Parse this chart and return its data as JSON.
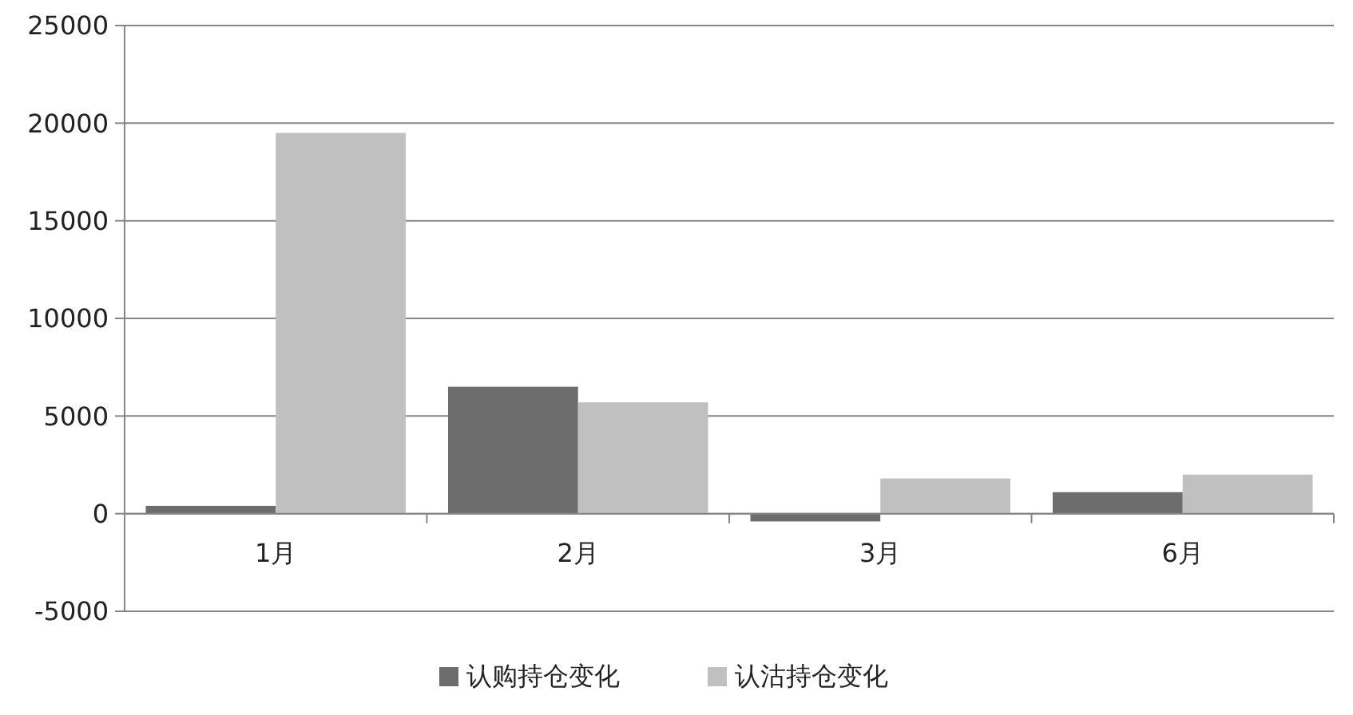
{
  "chart_data": {
    "type": "bar",
    "categories": [
      "1月",
      "2月",
      "3月",
      "6月"
    ],
    "series": [
      {
        "name": "认购持仓变化",
        "color": "#6d6d6d",
        "values": [
          400,
          6500,
          -400,
          1100
        ]
      },
      {
        "name": "认沽持仓变化",
        "color": "#c0c0c0",
        "values": [
          19500,
          5700,
          1800,
          2000
        ]
      }
    ],
    "ylim": [
      -5000,
      25000
    ],
    "yticks": [
      -5000,
      0,
      5000,
      10000,
      15000,
      20000,
      25000
    ],
    "grid": "y",
    "legend": "bottom"
  }
}
